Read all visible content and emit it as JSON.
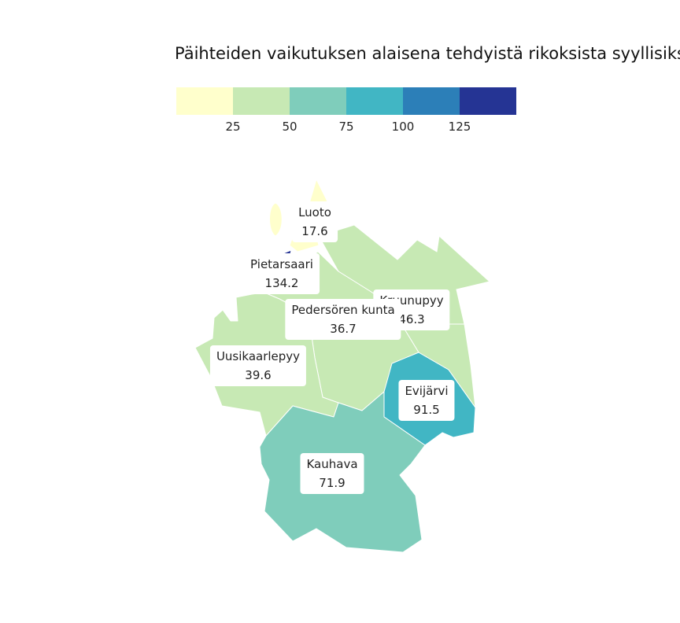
{
  "title": "Päihteiden vaikutuksen alaisena tehdyistä rikoksista syyllisiksi",
  "legend": {
    "colors": [
      "#ffffcc",
      "#c7e9b4",
      "#7fcdbb",
      "#41b6c4",
      "#2c7fb8",
      "#253494"
    ],
    "ticks": [
      "25",
      "50",
      "75",
      "100",
      "125"
    ]
  },
  "regions": [
    {
      "name": "Luoto",
      "value": "17.6",
      "color": "#ffffcc"
    },
    {
      "name": "Pietarsaari",
      "value": "134.2",
      "color": "#253494"
    },
    {
      "name": "Kruunupyy",
      "value": "46.3",
      "color": "#c7e9b4"
    },
    {
      "name": "Pedersören kunta",
      "value": "36.7",
      "color": "#c7e9b4"
    },
    {
      "name": "Uusikaarlepyy",
      "value": "39.6",
      "color": "#c7e9b4"
    },
    {
      "name": "Evijärvi",
      "value": "91.5",
      "color": "#41b6c4"
    },
    {
      "name": "Kauhava",
      "value": "71.9",
      "color": "#7fcdbb"
    }
  ]
}
